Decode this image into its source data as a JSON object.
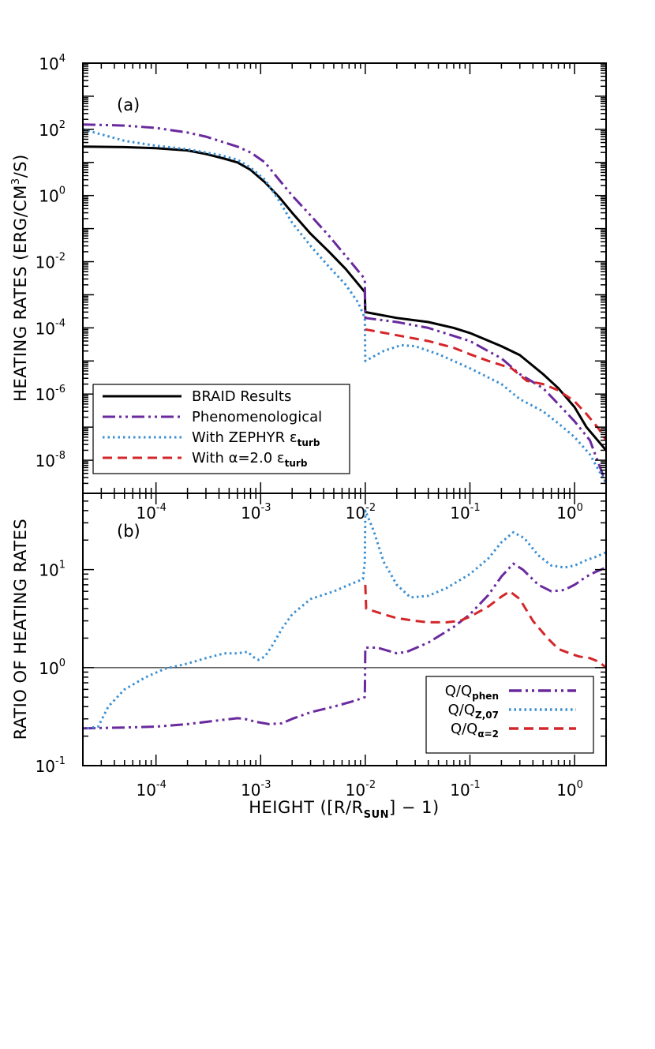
{
  "colors": {
    "braid": "#000000",
    "phen": "#6a2a9e",
    "zephyr": "#3a8fd2",
    "alpha": "#d4262a",
    "frame": "#000000"
  },
  "chart_data": [
    {
      "type": "line",
      "panel_label": "(a)",
      "x_scale": "log",
      "y_scale": "log",
      "xlim": [
        2e-05,
        2
      ],
      "ylim": [
        1e-09,
        10000.0
      ],
      "ylabel": "HEATING RATES (ERG/CM3/S)",
      "xticks": [
        {
          "base": "10",
          "exp": "-4",
          "value": 0.0001
        },
        {
          "base": "10",
          "exp": "-3",
          "value": 0.001
        },
        {
          "base": "10",
          "exp": "-2",
          "value": 0.01
        },
        {
          "base": "10",
          "exp": "-1",
          "value": 0.1
        },
        {
          "base": "10",
          "exp": "0",
          "value": 1
        }
      ],
      "yticks": [
        {
          "base": "10",
          "exp": "-8",
          "value": 1e-08
        },
        {
          "base": "10",
          "exp": "-6",
          "value": 1e-06
        },
        {
          "base": "10",
          "exp": "-4",
          "value": 0.0001
        },
        {
          "base": "10",
          "exp": "-2",
          "value": 0.01
        },
        {
          "base": "10",
          "exp": "0",
          "value": 1
        },
        {
          "base": "10",
          "exp": "2",
          "value": 100
        },
        {
          "base": "10",
          "exp": "4",
          "value": 10000
        }
      ],
      "legend": [
        {
          "text": "BRAID Results",
          "sub": "",
          "style": "solid",
          "color_key": "braid"
        },
        {
          "text": "Phenomenological",
          "sub": "",
          "style": "dashdotdot",
          "color_key": "phen"
        },
        {
          "text": "With ZEPHYR ε",
          "sub": "turb",
          "style": "dotted",
          "color_key": "zephyr"
        },
        {
          "text": "With α=2.0 ε",
          "sub": "turb",
          "style": "dashed",
          "color_key": "alpha"
        }
      ],
      "series": [
        {
          "key": "braid",
          "style": "solid",
          "points": [
            [
              2e-05,
              30
            ],
            [
              5e-05,
              29
            ],
            [
              0.0001,
              27
            ],
            [
              0.0002,
              23
            ],
            [
              0.0003,
              18
            ],
            [
              0.00045,
              13
            ],
            [
              0.0006,
              10
            ],
            [
              0.0008,
              6
            ],
            [
              0.0011,
              2.5
            ],
            [
              0.0015,
              0.9
            ],
            [
              0.002,
              0.3
            ],
            [
              0.003,
              0.07
            ],
            [
              0.0045,
              0.02
            ],
            [
              0.0065,
              0.006
            ],
            [
              0.0099,
              0.0012
            ],
            [
              0.01,
              0.0003
            ],
            [
              0.02,
              0.0002
            ],
            [
              0.04,
              0.00015
            ],
            [
              0.07,
              0.0001
            ],
            [
              0.1,
              7e-05
            ],
            [
              0.2,
              2.8e-05
            ],
            [
              0.3,
              1.5e-05
            ],
            [
              0.5,
              4e-06
            ],
            [
              0.7,
              1.5e-06
            ],
            [
              1.0,
              4e-07
            ],
            [
              1.3,
              1e-07
            ],
            [
              2.0,
              2e-08
            ]
          ]
        },
        {
          "key": "phen",
          "style": "dashdotdot",
          "points": [
            [
              2e-05,
              140
            ],
            [
              5e-05,
              130
            ],
            [
              0.0001,
              110
            ],
            [
              0.0002,
              80
            ],
            [
              0.0003,
              60
            ],
            [
              0.00045,
              40
            ],
            [
              0.0006,
              30
            ],
            [
              0.0008,
              20
            ],
            [
              0.0011,
              10
            ],
            [
              0.0015,
              3
            ],
            [
              0.002,
              1
            ],
            [
              0.003,
              0.25
            ],
            [
              0.0045,
              0.06
            ],
            [
              0.0065,
              0.015
            ],
            [
              0.0099,
              0.003
            ],
            [
              0.01,
              0.0002
            ],
            [
              0.02,
              0.00015
            ],
            [
              0.04,
              0.0001
            ],
            [
              0.1,
              4e-05
            ],
            [
              0.2,
              1.2e-05
            ],
            [
              0.3,
              4e-06
            ],
            [
              0.5,
              1.5e-06
            ],
            [
              0.7,
              5e-07
            ],
            [
              1.0,
              1.5e-07
            ],
            [
              1.4,
              4e-08
            ],
            [
              2.0,
              2e-09
            ]
          ]
        },
        {
          "key": "zephyr",
          "style": "dotted",
          "points": [
            [
              2e-05,
              100
            ],
            [
              5e-05,
              45
            ],
            [
              0.0001,
              32
            ],
            [
              0.0002,
              25
            ],
            [
              0.0004,
              17
            ],
            [
              0.0006,
              12
            ],
            [
              0.0008,
              7
            ],
            [
              0.0011,
              3
            ],
            [
              0.0015,
              0.7
            ],
            [
              0.002,
              0.15
            ],
            [
              0.003,
              0.03
            ],
            [
              0.0045,
              0.007
            ],
            [
              0.0065,
              0.002
            ],
            [
              0.0085,
              0.0006
            ],
            [
              0.0099,
              0.0002
            ],
            [
              0.01,
              1e-05
            ],
            [
              0.015,
              2e-05
            ],
            [
              0.022,
              3e-05
            ],
            [
              0.03,
              2.8e-05
            ],
            [
              0.05,
              1.6e-05
            ],
            [
              0.1,
              6e-06
            ],
            [
              0.2,
              2e-06
            ],
            [
              0.3,
              7e-07
            ],
            [
              0.5,
              3e-07
            ],
            [
              0.7,
              1.3e-07
            ],
            [
              1.0,
              5e-08
            ],
            [
              1.4,
              1.5e-08
            ],
            [
              2.0,
              2e-09
            ]
          ]
        },
        {
          "key": "alpha",
          "style": "dashed",
          "points": [
            [
              0.01,
              9e-05
            ],
            [
              0.02,
              6e-05
            ],
            [
              0.04,
              4e-05
            ],
            [
              0.07,
              2.5e-05
            ],
            [
              0.1,
              1.6e-05
            ],
            [
              0.15,
              1e-05
            ],
            [
              0.25,
              6e-06
            ],
            [
              0.35,
              2.5e-06
            ],
            [
              0.5,
              2e-06
            ],
            [
              0.7,
              1.3e-06
            ],
            [
              1.0,
              6e-07
            ],
            [
              1.3,
              2.5e-07
            ],
            [
              1.7,
              9e-08
            ],
            [
              2.0,
              4e-08
            ]
          ]
        }
      ]
    },
    {
      "type": "line",
      "panel_label": "(b)",
      "x_scale": "log",
      "y_scale": "log",
      "xlim": [
        2e-05,
        2
      ],
      "ylim": [
        0.1,
        60
      ],
      "xlabel": "HEIGHT ([R/RSUN] − 1)",
      "ylabel": "RATIO OF HEATING RATES",
      "reference_line": 1,
      "xticks": [
        {
          "base": "10",
          "exp": "-4",
          "value": 0.0001
        },
        {
          "base": "10",
          "exp": "-3",
          "value": 0.001
        },
        {
          "base": "10",
          "exp": "-2",
          "value": 0.01
        },
        {
          "base": "10",
          "exp": "-1",
          "value": 0.1
        },
        {
          "base": "10",
          "exp": "0",
          "value": 1
        }
      ],
      "yticks": [
        {
          "base": "10",
          "exp": "-1",
          "value": 0.1
        },
        {
          "base": "10",
          "exp": "0",
          "value": 1
        },
        {
          "base": "10",
          "exp": "1",
          "value": 10
        }
      ],
      "legend": [
        {
          "text": "Q/Q",
          "sub": "phen",
          "style": "dashdotdot",
          "color_key": "phen"
        },
        {
          "text": "Q/Q",
          "sub": "Z,07",
          "style": "dotted",
          "color_key": "zephyr"
        },
        {
          "text": "Q/Q",
          "sub": "α=2",
          "style": "dashed",
          "color_key": "alpha"
        }
      ],
      "series": [
        {
          "key": "phen",
          "style": "dashdotdot",
          "points": [
            [
              2e-05,
              0.24
            ],
            [
              5e-05,
              0.245
            ],
            [
              0.0001,
              0.25
            ],
            [
              0.0002,
              0.265
            ],
            [
              0.0004,
              0.29
            ],
            [
              0.0006,
              0.305
            ],
            [
              0.0007,
              0.3
            ],
            [
              0.0009,
              0.28
            ],
            [
              0.0012,
              0.265
            ],
            [
              0.0016,
              0.27
            ],
            [
              0.002,
              0.3
            ],
            [
              0.003,
              0.35
            ],
            [
              0.005,
              0.4
            ],
            [
              0.008,
              0.46
            ],
            [
              0.0099,
              0.5
            ],
            [
              0.01,
              1.6
            ],
            [
              0.013,
              1.6
            ],
            [
              0.016,
              1.5
            ],
            [
              0.02,
              1.4
            ],
            [
              0.025,
              1.45
            ],
            [
              0.04,
              1.8
            ],
            [
              0.07,
              2.6
            ],
            [
              0.1,
              3.5
            ],
            [
              0.15,
              5.5
            ],
            [
              0.2,
              8.5
            ],
            [
              0.26,
              11.5
            ],
            [
              0.32,
              10
            ],
            [
              0.45,
              7
            ],
            [
              0.6,
              6
            ],
            [
              0.8,
              6.2
            ],
            [
              1.0,
              7
            ],
            [
              1.3,
              8.5
            ],
            [
              1.6,
              9.5
            ],
            [
              2.0,
              10.5
            ]
          ]
        },
        {
          "key": "zephyr",
          "style": "dotted",
          "points": [
            [
              2.2e-05,
              0.24
            ],
            [
              2.8e-05,
              0.25
            ],
            [
              3.5e-05,
              0.4
            ],
            [
              5e-05,
              0.6
            ],
            [
              8e-05,
              0.8
            ],
            [
              0.00012,
              0.97
            ],
            [
              0.0002,
              1.1
            ],
            [
              0.0003,
              1.25
            ],
            [
              0.00045,
              1.4
            ],
            [
              0.0006,
              1.4
            ],
            [
              0.00075,
              1.45
            ],
            [
              0.00088,
              1.25
            ],
            [
              0.00095,
              1.2
            ],
            [
              0.0011,
              1.3
            ],
            [
              0.0013,
              1.7
            ],
            [
              0.0016,
              2.5
            ],
            [
              0.002,
              3.5
            ],
            [
              0.003,
              5
            ],
            [
              0.005,
              6
            ],
            [
              0.007,
              7
            ],
            [
              0.0095,
              8
            ],
            [
              0.0099,
              12
            ],
            [
              0.01,
              40
            ],
            [
              0.012,
              25
            ],
            [
              0.015,
              12
            ],
            [
              0.02,
              7
            ],
            [
              0.027,
              5.2
            ],
            [
              0.04,
              5.4
            ],
            [
              0.06,
              6.5
            ],
            [
              0.1,
              9
            ],
            [
              0.15,
              13
            ],
            [
              0.2,
              19
            ],
            [
              0.26,
              24
            ],
            [
              0.33,
              21
            ],
            [
              0.45,
              14
            ],
            [
              0.6,
              11
            ],
            [
              0.8,
              10.5
            ],
            [
              1.0,
              11
            ],
            [
              1.3,
              12.5
            ],
            [
              1.6,
              13.5
            ],
            [
              2.0,
              15
            ]
          ]
        },
        {
          "key": "alpha",
          "style": "dashed",
          "points": [
            [
              0.01,
              7
            ],
            [
              0.0102,
              4
            ],
            [
              0.015,
              3.5
            ],
            [
              0.02,
              3.2
            ],
            [
              0.03,
              3
            ],
            [
              0.04,
              2.9
            ],
            [
              0.06,
              2.9
            ],
            [
              0.08,
              3
            ],
            [
              0.1,
              3.3
            ],
            [
              0.15,
              4.2
            ],
            [
              0.2,
              5.3
            ],
            [
              0.24,
              6
            ],
            [
              0.3,
              5
            ],
            [
              0.4,
              3
            ],
            [
              0.55,
              2
            ],
            [
              0.7,
              1.55
            ],
            [
              0.9,
              1.4
            ],
            [
              1.1,
              1.3
            ],
            [
              1.4,
              1.25
            ],
            [
              1.7,
              1.15
            ],
            [
              2.0,
              1.0
            ]
          ]
        }
      ]
    }
  ]
}
